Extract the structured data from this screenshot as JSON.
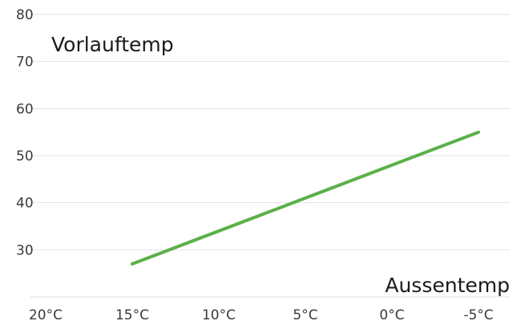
{
  "chart_data": {
    "type": "line",
    "title": "",
    "ylabel": "Vorlauftemp",
    "xlabel": "Aussentemp",
    "x_tick_labels": [
      "20°C",
      "15°C",
      "10°C",
      "5°C",
      "0°C",
      "-5°C"
    ],
    "x_tick_values": [
      20,
      15,
      10,
      5,
      0,
      -5
    ],
    "y_tick_labels": [
      "30",
      "40",
      "50",
      "60",
      "70",
      "80"
    ],
    "y_tick_values": [
      30,
      40,
      50,
      60,
      70,
      80
    ],
    "xlim": [
      20,
      -5
    ],
    "ylim": [
      20,
      80
    ],
    "grid": true,
    "series": [
      {
        "x": [
          15,
          -5
        ],
        "y": [
          27,
          55
        ],
        "color": "#5cb04a"
      }
    ]
  }
}
